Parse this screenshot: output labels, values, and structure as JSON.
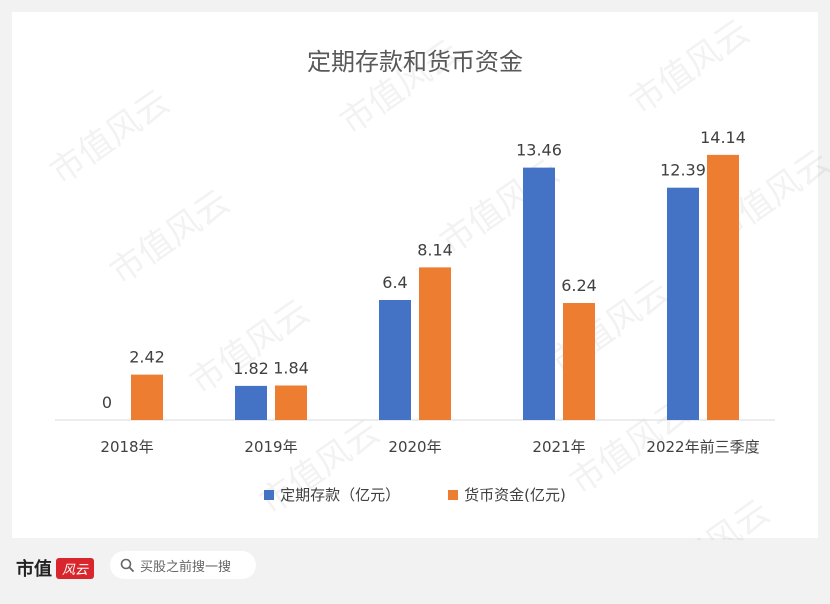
{
  "chart_data": {
    "type": "bar",
    "title": "定期存款和货币资金",
    "categories": [
      "2018年",
      "2019年",
      "2020年",
      "2021年",
      "2022年前三季度"
    ],
    "series": [
      {
        "name": "定期存款（亿元）",
        "values": [
          0,
          1.82,
          6.4,
          13.46,
          12.39
        ],
        "color": "#4472c4"
      },
      {
        "name": "货币资金(亿元)",
        "values": [
          2.42,
          1.84,
          8.14,
          6.24,
          14.14
        ],
        "color": "#ed7d31"
      }
    ],
    "ylim": [
      0,
      16
    ],
    "grid": false,
    "legend": "bottom"
  },
  "footer": {
    "logo_text": "市值",
    "logo_badge": "风云",
    "search_placeholder": "买股之前搜一搜",
    "search_icon": "search-icon"
  },
  "watermark": "市值风云"
}
